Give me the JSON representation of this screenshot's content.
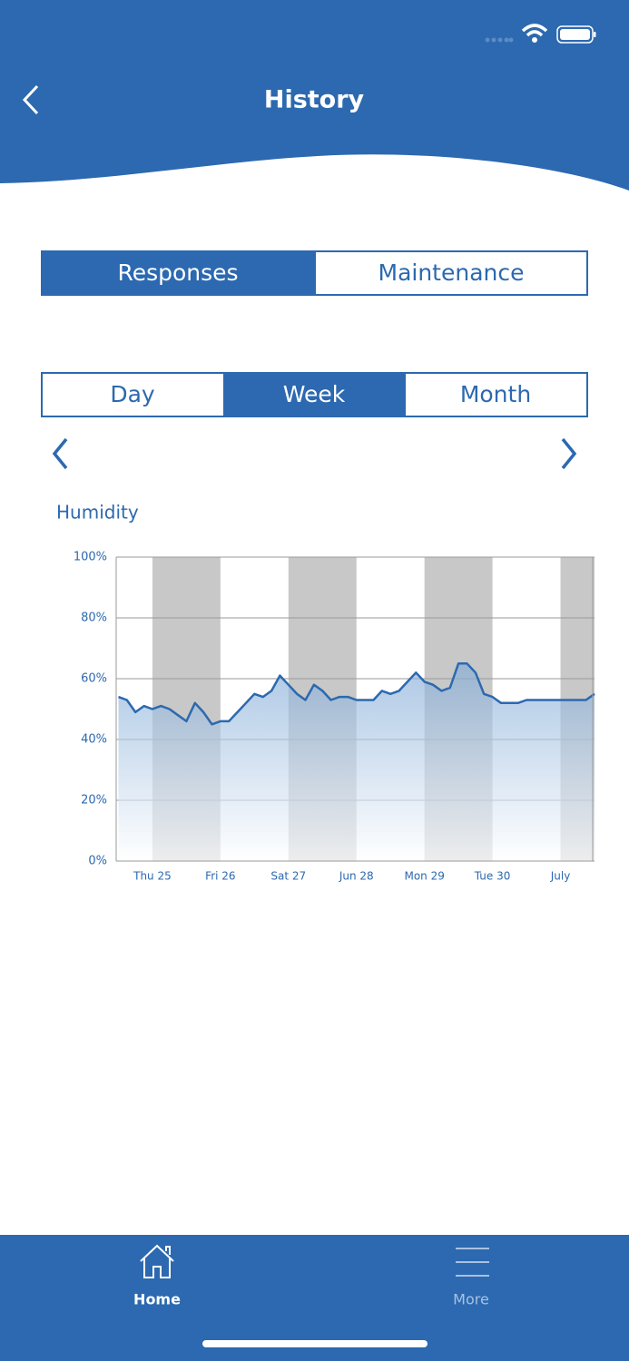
{
  "header": {
    "title": "History"
  },
  "view_tabs": [
    "Responses",
    "Maintenance"
  ],
  "range_tabs": [
    "Day",
    "Week",
    "Month"
  ],
  "chart_data": {
    "type": "area",
    "title": "Humidity",
    "color": "#2c69b0",
    "x": [
      -0.5,
      -0.375,
      -0.25,
      -0.125,
      0,
      0.125,
      0.25,
      0.375,
      0.5,
      0.625,
      0.75,
      0.875,
      1,
      1.125,
      1.25,
      1.375,
      1.5,
      1.625,
      1.75,
      1.875,
      2,
      2.125,
      2.25,
      2.375,
      2.5,
      2.625,
      2.75,
      2.875,
      3,
      3.125,
      3.25,
      3.375,
      3.5,
      3.625,
      3.75,
      3.875,
      4,
      4.125,
      4.25,
      4.375,
      4.5,
      4.625,
      4.75,
      4.875,
      5,
      5.125,
      5.25,
      5.375,
      5.5,
      5.625,
      5.75,
      5.875,
      6,
      6.125,
      6.25,
      6.375,
      6.5
    ],
    "values": [
      54,
      53,
      49,
      51,
      50,
      51,
      50,
      48,
      46,
      52,
      49,
      45,
      46,
      46,
      49,
      52,
      55,
      54,
      56,
      61,
      58,
      55,
      53,
      58,
      56,
      53,
      54,
      54,
      53,
      53,
      53,
      56,
      55,
      56,
      59,
      62,
      59,
      58,
      56,
      57,
      65,
      65,
      62,
      55,
      54,
      52,
      52,
      52,
      53,
      53,
      53,
      53,
      53,
      53,
      53,
      53,
      55
    ],
    "xlim": [
      -0.533,
      6.5
    ],
    "xticks": [
      {
        "value": 0,
        "label": "Thu 25"
      },
      {
        "value": 1,
        "label": "Fri 26"
      },
      {
        "value": 2,
        "label": "Sat 27"
      },
      {
        "value": 3,
        "label": "Jun 28"
      },
      {
        "value": 4,
        "label": "Mon 29"
      },
      {
        "value": 5,
        "label": "Tue 30"
      },
      {
        "value": 6,
        "label": "July"
      }
    ],
    "ylim": [
      0,
      100
    ],
    "yticks": [
      {
        "value": 0,
        "label": "0%"
      },
      {
        "value": 20,
        "label": "20%"
      },
      {
        "value": 40,
        "label": "40%"
      },
      {
        "value": 60,
        "label": "60%"
      },
      {
        "value": 80,
        "label": "80%"
      },
      {
        "value": 100,
        "label": "100%"
      }
    ],
    "grid": true
  },
  "nav": [
    "Home",
    "More"
  ]
}
